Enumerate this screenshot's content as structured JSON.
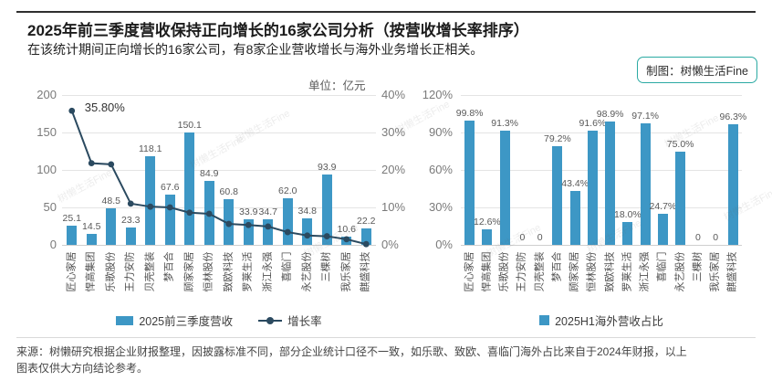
{
  "header": {
    "title": "2025年前三季度营收保持正向增长的16家公司分析（按营收增长率排序）",
    "subtitle": "在该统计期间正向增长的16家公司，有8家企业营收增长与海外业务增长正相关。",
    "badge": "制图：树懒生活Fine"
  },
  "watermark_text": "树懒生活Fine",
  "colors": {
    "bar": "#3d97c5",
    "line": "#2b4a60",
    "badge_border": "#2baaa3"
  },
  "chart_data": [
    {
      "type": "bar+line",
      "unit_note": "单位：亿元",
      "categories": [
        "匠心家居",
        "悍高集团",
        "乐歌股份",
        "王力安防",
        "贝壳整装",
        "梦百合",
        "顾家家居",
        "恒林股份",
        "致欧科技",
        "罗莱生活",
        "浙江永强",
        "喜临门",
        "永艺股份",
        "三棵树",
        "我乐家居",
        "麒盛科技"
      ],
      "series": [
        {
          "name": "2025前三季度营收",
          "type": "bar",
          "values": [
            25.1,
            14.5,
            48.5,
            23.3,
            118.1,
            67.6,
            150.1,
            84.9,
            60.8,
            33.9,
            34.7,
            62.0,
            34.8,
            93.9,
            10.6,
            22.2
          ],
          "value_labels": [
            "25.1",
            "14.5",
            "48.5",
            "23.3",
            "118.1",
            "67.6",
            "150.1",
            "84.9",
            "60.8",
            "33.9",
            "34.7",
            "62.0",
            "34.8",
            "93.9",
            "10.6",
            "22.2"
          ]
        },
        {
          "name": "增长率",
          "type": "line",
          "values": [
            35.8,
            21.8,
            21.5,
            11.0,
            10.2,
            10.0,
            8.6,
            8.3,
            5.6,
            5.3,
            4.9,
            3.4,
            2.5,
            2.3,
            1.5,
            0.2
          ],
          "labeled_point": {
            "index": 0,
            "label": "35.80%"
          }
        }
      ],
      "left_axis": {
        "ticks": [
          "200",
          "150",
          "100",
          "50",
          "0"
        ],
        "max": 200,
        "min": 0
      },
      "right_axis": {
        "ticks": [
          "40%",
          "30%",
          "20%",
          "10%",
          "0%"
        ],
        "max": 40,
        "min": 0
      },
      "grid": true,
      "legend_position": "bottom"
    },
    {
      "type": "bar",
      "name": "2025H1海外营收占比",
      "categories": [
        "匠心家居",
        "悍高集团",
        "乐歌股份",
        "王力安防",
        "贝壳整装",
        "梦百合",
        "顾家家居",
        "恒林股份",
        "致欧科技",
        "罗莱生活",
        "浙江永强",
        "喜临门",
        "永艺股份",
        "三棵树",
        "我乐家居",
        "麒盛科技"
      ],
      "values": [
        99.8,
        12.6,
        91.3,
        0,
        0,
        79.2,
        43.4,
        91.6,
        98.9,
        18.0,
        97.1,
        24.7,
        75.0,
        0,
        0,
        96.3
      ],
      "value_labels": [
        "99.8%",
        "12.6%",
        "91.3%",
        "0",
        "0",
        "79.2%",
        "43.4%",
        "91.6%",
        "98.9%",
        "18.0%",
        "97.1%",
        "24.7%",
        "75.0%",
        "0",
        "0",
        "96.3%"
      ],
      "left_axis": {
        "ticks": [
          "120%",
          "90%",
          "60%",
          "30%",
          "0%"
        ],
        "max": 120,
        "min": 0
      },
      "grid": true,
      "legend_position": "bottom"
    }
  ],
  "footer": {
    "line1": "来源：树懒研究根据企业财报整理，因披露标准不同，部分企业统计口径不一致，如乐歌、致欧、喜临门海外占比来自于2024年财报，以上",
    "line2": "图表仅供大方向结论参考。"
  }
}
